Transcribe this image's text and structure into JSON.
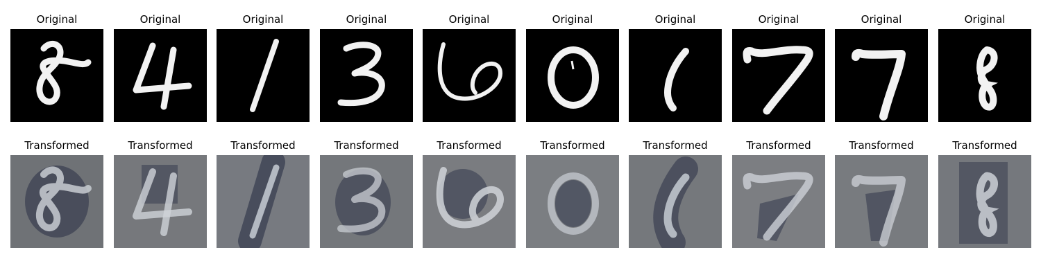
{
  "row_titles": {
    "top": "Original",
    "bottom": "Transformed"
  },
  "samples": [
    {
      "digit": "8"
    },
    {
      "digit": "4"
    },
    {
      "digit": "1"
    },
    {
      "digit": "3"
    },
    {
      "digit": "6"
    },
    {
      "digit": "0"
    },
    {
      "digit": "1"
    },
    {
      "digit": "7"
    },
    {
      "digit": "7"
    },
    {
      "digit": "8"
    }
  ],
  "colors": {
    "original_bg": "#000000",
    "original_stroke": "#f2f2f2",
    "transformed_bg": "#7d7f82",
    "transformed_stroke": "#d3d7dc",
    "transformed_dark": "#2a2f45"
  }
}
